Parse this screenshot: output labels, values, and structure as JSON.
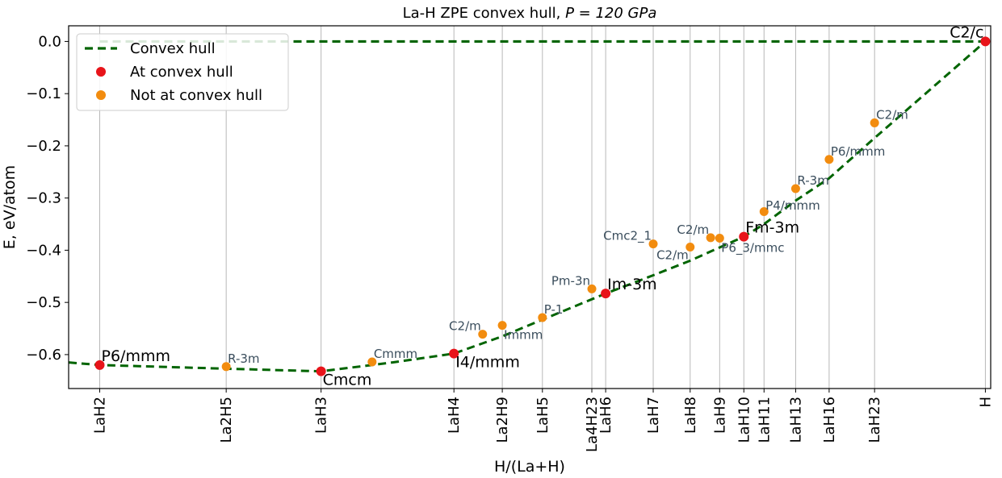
{
  "chart_data": {
    "type": "scatter",
    "title": "La-H ZPE convex hull, ",
    "title_math": "P = 120 GPa",
    "xlabel": "H/(La+H)",
    "ylabel": "E, eV/atom",
    "xlim": [
      0.655,
      1.002
    ],
    "ylim": [
      -0.665,
      0.03
    ],
    "yticks": [
      0.0,
      -0.1,
      -0.2,
      -0.3,
      -0.4,
      -0.5,
      -0.6
    ],
    "ytick_labels": [
      "0.0",
      "−0.1",
      "−0.2",
      "−0.3",
      "−0.4",
      "−0.5",
      "−0.6"
    ],
    "xticks": [
      {
        "x": 0.6667,
        "label": "LaH2"
      },
      {
        "x": 0.7143,
        "label": "La2H5"
      },
      {
        "x": 0.75,
        "label": "LaH3"
      },
      {
        "x": 0.8,
        "label": "LaH4"
      },
      {
        "x": 0.8182,
        "label": "La2H9"
      },
      {
        "x": 0.8333,
        "label": "LaH5"
      },
      {
        "x": 0.8519,
        "label": "La4H23"
      },
      {
        "x": 0.8571,
        "label": "LaH6"
      },
      {
        "x": 0.875,
        "label": "LaH7"
      },
      {
        "x": 0.8889,
        "label": "LaH8"
      },
      {
        "x": 0.9,
        "label": "LaH9"
      },
      {
        "x": 0.9091,
        "label": "LaH10"
      },
      {
        "x": 0.9167,
        "label": "LaH11"
      },
      {
        "x": 0.9286,
        "label": "LaH13"
      },
      {
        "x": 0.9412,
        "label": "LaH16"
      },
      {
        "x": 0.9583,
        "label": "LaH23"
      },
      {
        "x": 1.0,
        "label": "H"
      }
    ],
    "grid": "vertical",
    "legend_position": "top-left",
    "legend": [
      {
        "label": "Convex hull",
        "kind": "line",
        "color": "#006400"
      },
      {
        "label": "At convex hull",
        "kind": "marker",
        "color": "#e8141a"
      },
      {
        "label": "Not at convex hull",
        "kind": "marker",
        "color": "#f28c0f"
      }
    ],
    "hull_line": {
      "name": "Convex hull",
      "color": "#006400",
      "points": [
        [
          0.655,
          -0.615
        ],
        [
          0.6667,
          -0.62
        ],
        [
          0.7143,
          -0.627
        ],
        [
          0.75,
          -0.632
        ],
        [
          0.7769,
          -0.615
        ],
        [
          0.8,
          -0.598
        ],
        [
          0.8182,
          -0.565
        ],
        [
          0.8333,
          -0.533
        ],
        [
          0.8571,
          -0.483
        ],
        [
          0.875,
          -0.448
        ],
        [
          0.8889,
          -0.42
        ],
        [
          0.9091,
          -0.374
        ],
        [
          0.9167,
          -0.35
        ],
        [
          0.9286,
          -0.305
        ],
        [
          0.9412,
          -0.262
        ],
        [
          0.9583,
          -0.185
        ],
        [
          1.0,
          0.0
        ]
      ]
    },
    "top_line": {
      "color": "#006400",
      "y": 0.0,
      "x": [
        0.6667,
        1.0
      ]
    },
    "on_hull": [
      {
        "x": 0.6667,
        "y": -0.62,
        "label": "P6/mmm",
        "anchor": "above-right"
      },
      {
        "x": 0.75,
        "y": -0.632,
        "label": "Cmcm",
        "anchor": "below-right"
      },
      {
        "x": 0.8,
        "y": -0.598,
        "label": "I4/mmm",
        "anchor": "below-right"
      },
      {
        "x": 0.8571,
        "y": -0.483,
        "label": "Im-3m",
        "anchor": "above-right"
      },
      {
        "x": 0.9091,
        "y": -0.374,
        "label": "Fm-3m",
        "anchor": "above-right"
      },
      {
        "x": 1.0,
        "y": 0.0,
        "label": "C2/c",
        "anchor": "above-left"
      }
    ],
    "off_hull": [
      {
        "x": 0.7143,
        "y": -0.623,
        "label": "R-3m",
        "anchor": "above-right"
      },
      {
        "x": 0.7692,
        "y": -0.614,
        "label": "Cmmm",
        "anchor": "above-right"
      },
      {
        "x": 0.8108,
        "y": -0.561,
        "label": "C2/m",
        "anchor": "above-left"
      },
      {
        "x": 0.8182,
        "y": -0.544,
        "label": "Immm",
        "anchor": "below-right"
      },
      {
        "x": 0.8333,
        "y": -0.529,
        "label": "P-1",
        "anchor": "above-right"
      },
      {
        "x": 0.8519,
        "y": -0.474,
        "label": "Pm-3n",
        "anchor": "above-left"
      },
      {
        "x": 0.875,
        "y": -0.388,
        "label": "Cmc2_1",
        "anchor": "above-left"
      },
      {
        "x": 0.8889,
        "y": -0.394,
        "label": "C2/m",
        "anchor": "below-left"
      },
      {
        "x": 0.8966,
        "y": -0.376,
        "label": "C2/m",
        "anchor": "above-left"
      },
      {
        "x": 0.9,
        "y": -0.377,
        "label": "P6_3/mmc",
        "anchor": "below-right"
      },
      {
        "x": 0.9167,
        "y": -0.326,
        "label": "P4/mmm",
        "anchor": "right"
      },
      {
        "x": 0.9286,
        "y": -0.282,
        "label": "R-3m",
        "anchor": "above-right"
      },
      {
        "x": 0.9412,
        "y": -0.226,
        "label": "P6/mmm",
        "anchor": "above-right"
      },
      {
        "x": 0.9583,
        "y": -0.156,
        "label": "C2/m",
        "anchor": "above-right"
      }
    ]
  }
}
